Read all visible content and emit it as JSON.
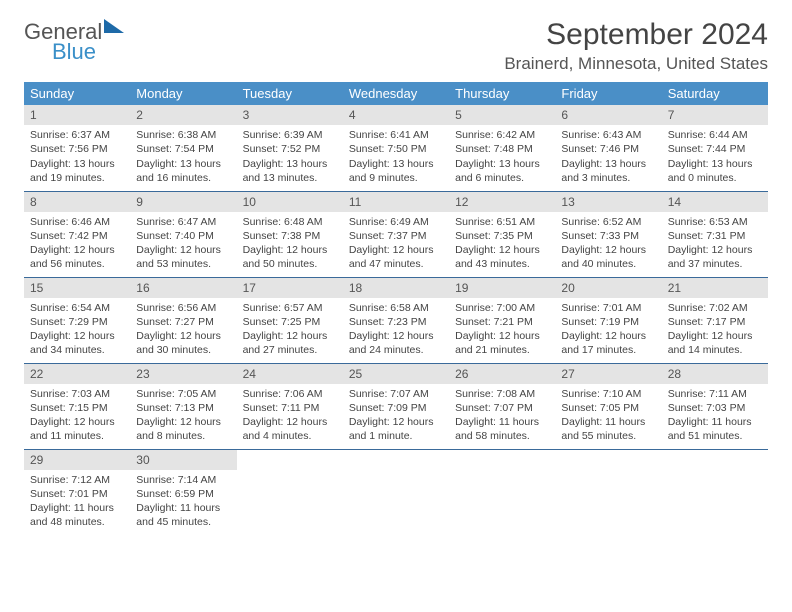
{
  "logo": {
    "line1": "General",
    "line2": "Blue"
  },
  "title": "September 2024",
  "location": "Brainerd, Minnesota, United States",
  "colors": {
    "header_bg": "#4a8fc7",
    "header_text": "#ffffff",
    "daynum_bg": "#e4e4e4",
    "row_border": "#3a6a9a",
    "text": "#444444",
    "logo_blue": "#3a8fc8",
    "logo_gray": "#555555"
  },
  "typography": {
    "title_fontsize": 30,
    "location_fontsize": 17,
    "dayheader_fontsize": 13,
    "cell_fontsize": 10.5
  },
  "day_headers": [
    "Sunday",
    "Monday",
    "Tuesday",
    "Wednesday",
    "Thursday",
    "Friday",
    "Saturday"
  ],
  "weeks": [
    [
      {
        "num": "1",
        "sunrise": "Sunrise: 6:37 AM",
        "sunset": "Sunset: 7:56 PM",
        "day1": "Daylight: 13 hours",
        "day2": "and 19 minutes."
      },
      {
        "num": "2",
        "sunrise": "Sunrise: 6:38 AM",
        "sunset": "Sunset: 7:54 PM",
        "day1": "Daylight: 13 hours",
        "day2": "and 16 minutes."
      },
      {
        "num": "3",
        "sunrise": "Sunrise: 6:39 AM",
        "sunset": "Sunset: 7:52 PM",
        "day1": "Daylight: 13 hours",
        "day2": "and 13 minutes."
      },
      {
        "num": "4",
        "sunrise": "Sunrise: 6:41 AM",
        "sunset": "Sunset: 7:50 PM",
        "day1": "Daylight: 13 hours",
        "day2": "and 9 minutes."
      },
      {
        "num": "5",
        "sunrise": "Sunrise: 6:42 AM",
        "sunset": "Sunset: 7:48 PM",
        "day1": "Daylight: 13 hours",
        "day2": "and 6 minutes."
      },
      {
        "num": "6",
        "sunrise": "Sunrise: 6:43 AM",
        "sunset": "Sunset: 7:46 PM",
        "day1": "Daylight: 13 hours",
        "day2": "and 3 minutes."
      },
      {
        "num": "7",
        "sunrise": "Sunrise: 6:44 AM",
        "sunset": "Sunset: 7:44 PM",
        "day1": "Daylight: 13 hours",
        "day2": "and 0 minutes."
      }
    ],
    [
      {
        "num": "8",
        "sunrise": "Sunrise: 6:46 AM",
        "sunset": "Sunset: 7:42 PM",
        "day1": "Daylight: 12 hours",
        "day2": "and 56 minutes."
      },
      {
        "num": "9",
        "sunrise": "Sunrise: 6:47 AM",
        "sunset": "Sunset: 7:40 PM",
        "day1": "Daylight: 12 hours",
        "day2": "and 53 minutes."
      },
      {
        "num": "10",
        "sunrise": "Sunrise: 6:48 AM",
        "sunset": "Sunset: 7:38 PM",
        "day1": "Daylight: 12 hours",
        "day2": "and 50 minutes."
      },
      {
        "num": "11",
        "sunrise": "Sunrise: 6:49 AM",
        "sunset": "Sunset: 7:37 PM",
        "day1": "Daylight: 12 hours",
        "day2": "and 47 minutes."
      },
      {
        "num": "12",
        "sunrise": "Sunrise: 6:51 AM",
        "sunset": "Sunset: 7:35 PM",
        "day1": "Daylight: 12 hours",
        "day2": "and 43 minutes."
      },
      {
        "num": "13",
        "sunrise": "Sunrise: 6:52 AM",
        "sunset": "Sunset: 7:33 PM",
        "day1": "Daylight: 12 hours",
        "day2": "and 40 minutes."
      },
      {
        "num": "14",
        "sunrise": "Sunrise: 6:53 AM",
        "sunset": "Sunset: 7:31 PM",
        "day1": "Daylight: 12 hours",
        "day2": "and 37 minutes."
      }
    ],
    [
      {
        "num": "15",
        "sunrise": "Sunrise: 6:54 AM",
        "sunset": "Sunset: 7:29 PM",
        "day1": "Daylight: 12 hours",
        "day2": "and 34 minutes."
      },
      {
        "num": "16",
        "sunrise": "Sunrise: 6:56 AM",
        "sunset": "Sunset: 7:27 PM",
        "day1": "Daylight: 12 hours",
        "day2": "and 30 minutes."
      },
      {
        "num": "17",
        "sunrise": "Sunrise: 6:57 AM",
        "sunset": "Sunset: 7:25 PM",
        "day1": "Daylight: 12 hours",
        "day2": "and 27 minutes."
      },
      {
        "num": "18",
        "sunrise": "Sunrise: 6:58 AM",
        "sunset": "Sunset: 7:23 PM",
        "day1": "Daylight: 12 hours",
        "day2": "and 24 minutes."
      },
      {
        "num": "19",
        "sunrise": "Sunrise: 7:00 AM",
        "sunset": "Sunset: 7:21 PM",
        "day1": "Daylight: 12 hours",
        "day2": "and 21 minutes."
      },
      {
        "num": "20",
        "sunrise": "Sunrise: 7:01 AM",
        "sunset": "Sunset: 7:19 PM",
        "day1": "Daylight: 12 hours",
        "day2": "and 17 minutes."
      },
      {
        "num": "21",
        "sunrise": "Sunrise: 7:02 AM",
        "sunset": "Sunset: 7:17 PM",
        "day1": "Daylight: 12 hours",
        "day2": "and 14 minutes."
      }
    ],
    [
      {
        "num": "22",
        "sunrise": "Sunrise: 7:03 AM",
        "sunset": "Sunset: 7:15 PM",
        "day1": "Daylight: 12 hours",
        "day2": "and 11 minutes."
      },
      {
        "num": "23",
        "sunrise": "Sunrise: 7:05 AM",
        "sunset": "Sunset: 7:13 PM",
        "day1": "Daylight: 12 hours",
        "day2": "and 8 minutes."
      },
      {
        "num": "24",
        "sunrise": "Sunrise: 7:06 AM",
        "sunset": "Sunset: 7:11 PM",
        "day1": "Daylight: 12 hours",
        "day2": "and 4 minutes."
      },
      {
        "num": "25",
        "sunrise": "Sunrise: 7:07 AM",
        "sunset": "Sunset: 7:09 PM",
        "day1": "Daylight: 12 hours",
        "day2": "and 1 minute."
      },
      {
        "num": "26",
        "sunrise": "Sunrise: 7:08 AM",
        "sunset": "Sunset: 7:07 PM",
        "day1": "Daylight: 11 hours",
        "day2": "and 58 minutes."
      },
      {
        "num": "27",
        "sunrise": "Sunrise: 7:10 AM",
        "sunset": "Sunset: 7:05 PM",
        "day1": "Daylight: 11 hours",
        "day2": "and 55 minutes."
      },
      {
        "num": "28",
        "sunrise": "Sunrise: 7:11 AM",
        "sunset": "Sunset: 7:03 PM",
        "day1": "Daylight: 11 hours",
        "day2": "and 51 minutes."
      }
    ],
    [
      {
        "num": "29",
        "sunrise": "Sunrise: 7:12 AM",
        "sunset": "Sunset: 7:01 PM",
        "day1": "Daylight: 11 hours",
        "day2": "and 48 minutes."
      },
      {
        "num": "30",
        "sunrise": "Sunrise: 7:14 AM",
        "sunset": "Sunset: 6:59 PM",
        "day1": "Daylight: 11 hours",
        "day2": "and 45 minutes."
      },
      null,
      null,
      null,
      null,
      null
    ]
  ]
}
